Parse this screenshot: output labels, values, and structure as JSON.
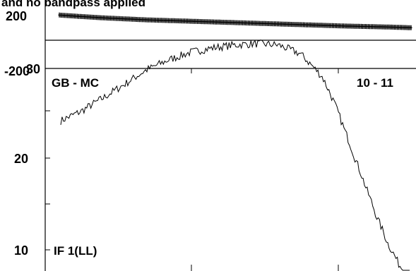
{
  "chart_data": [
    {
      "type": "line",
      "panel": "phase",
      "title": "and no bandpass applied",
      "y_ticks": [
        "200",
        "-200"
      ],
      "ylim": [
        -200,
        200
      ],
      "style": "dense plus-marker trace",
      "series": [
        {
          "channels": [
            1,
            16,
            32,
            48,
            64,
            80,
            96,
            112,
            128,
            144,
            160,
            176,
            192,
            208,
            224,
            240,
            256
          ],
          "values": [
            112,
            104,
            96,
            90,
            84,
            80,
            76,
            72,
            68,
            64,
            60,
            56,
            52,
            48,
            45,
            42,
            38
          ]
        }
      ]
    },
    {
      "type": "line",
      "panel": "amplitude",
      "y_scale": "log",
      "y_ticks": [
        "10",
        "20",
        "30"
      ],
      "ylim": [
        8,
        52
      ],
      "labels": {
        "baseline": "GB - MC",
        "scan": "10 - 11",
        "if": "IF 1(LL)"
      },
      "series": [
        {
          "channels": [
            1,
            16,
            32,
            48,
            64,
            80,
            96,
            112,
            128,
            144,
            160,
            176,
            192,
            200,
            208,
            216,
            224,
            232,
            240,
            248,
            256
          ],
          "values": [
            26.5,
            28.5,
            31.5,
            35.0,
            39.0,
            42.0,
            44.5,
            46.0,
            47.0,
            47.5,
            47.0,
            44.0,
            37.0,
            31.0,
            25.0,
            20.0,
            16.0,
            12.8,
            10.5,
            9.0,
            8.0
          ]
        }
      ]
    }
  ],
  "colors": {
    "line": "#000000",
    "background": "#ffffff"
  }
}
